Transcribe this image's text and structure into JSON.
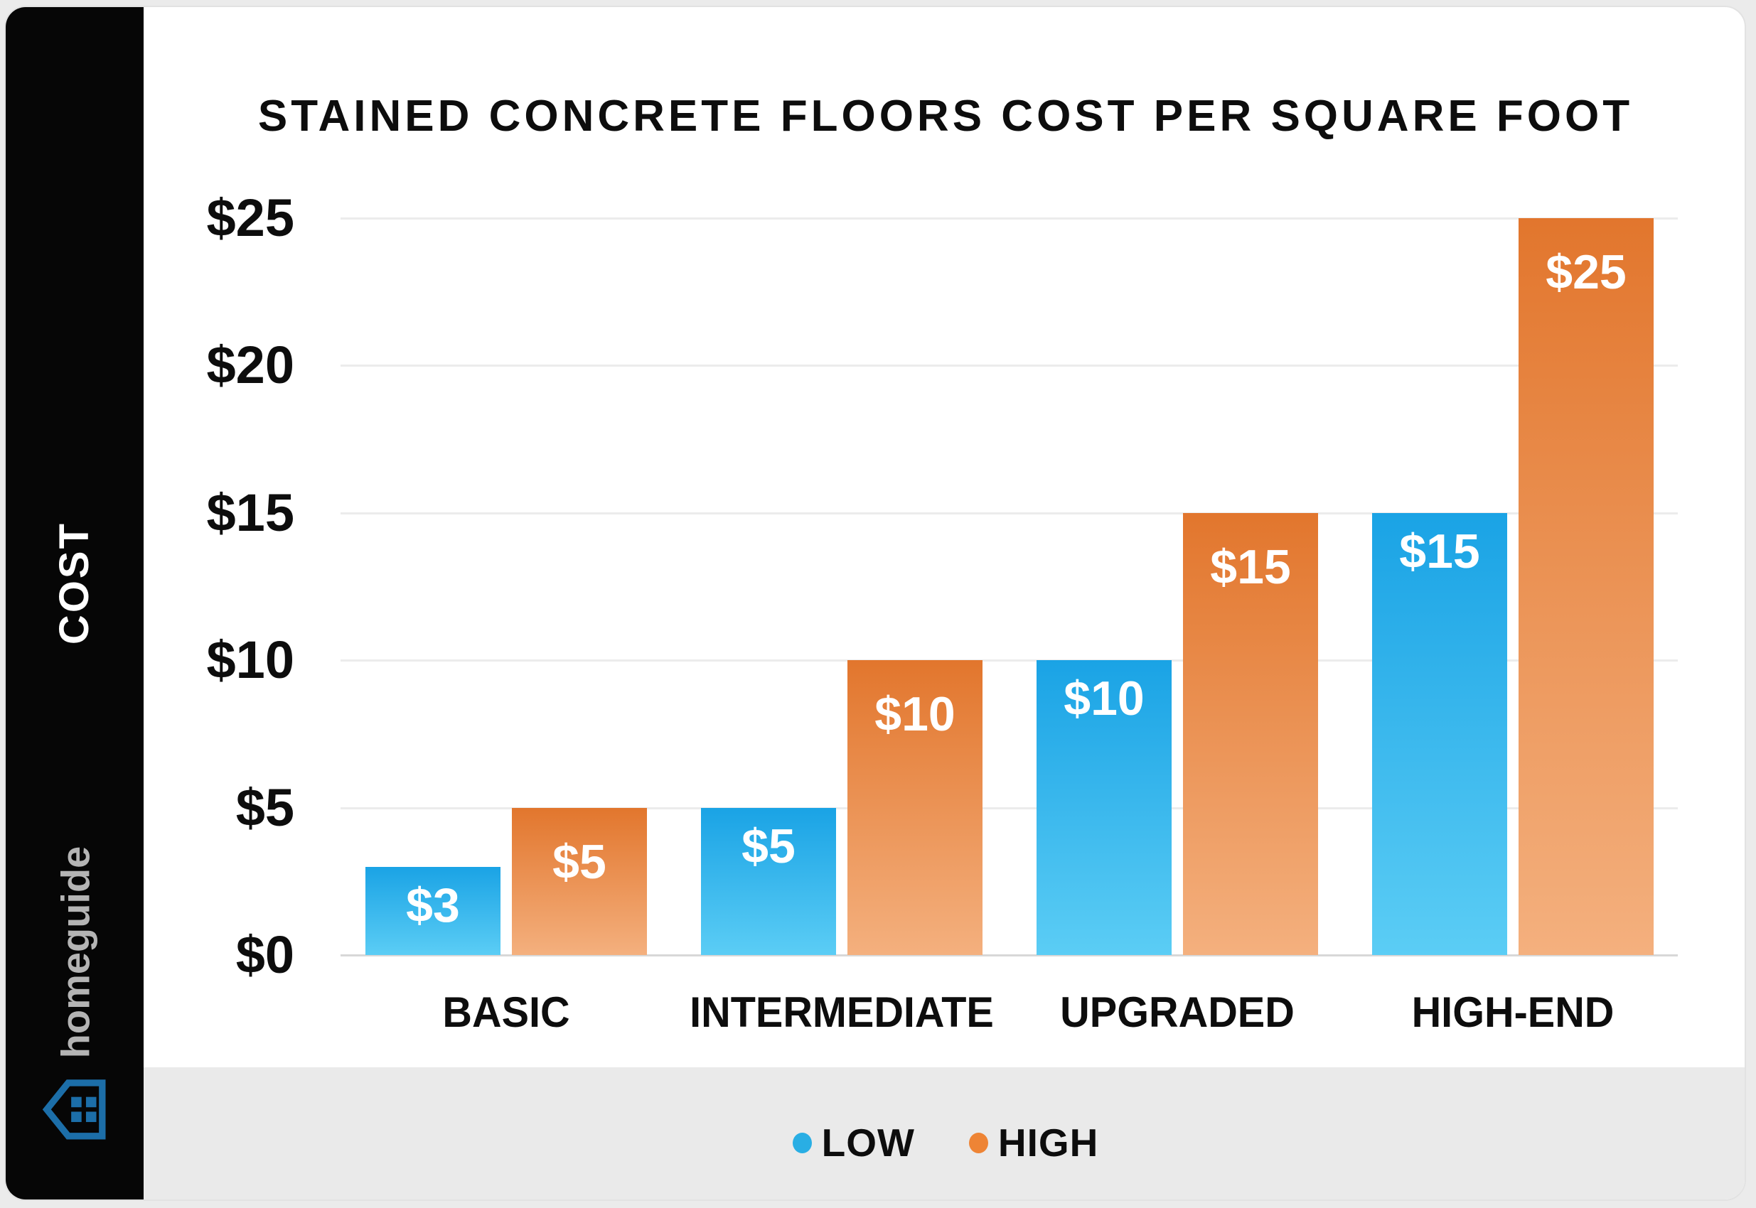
{
  "title": "STAINED CONCRETE FLOORS COST PER SQUARE FOOT",
  "sidebar": {
    "axis_label": "COST",
    "brand": "homeguide",
    "brand_text_color": "#b4b4b4",
    "house_icon_color": "#1c6ea8"
  },
  "legend": {
    "items": [
      {
        "label": "LOW",
        "color": "#29aee4"
      },
      {
        "label": "HIGH",
        "color": "#ee8435"
      }
    ]
  },
  "colors": {
    "rail_black": "#060606",
    "card_white": "#ffffff",
    "band_gray": "#eaeaea",
    "gridline": "#ececec",
    "baseline": "#d8d8d8",
    "text_black": "#0d0d0d"
  },
  "chart_data": {
    "type": "bar",
    "title": "STAINED CONCRETE FLOORS COST PER SQUARE FOOT",
    "categories": [
      "BASIC",
      "INTERMEDIATE",
      "UPGRADED",
      "HIGH-END"
    ],
    "series": [
      {
        "name": "LOW",
        "values": [
          3,
          5,
          10,
          15
        ],
        "labels": [
          "$3",
          "$5",
          "$10",
          "$15"
        ],
        "color_top": "#1aa3e5",
        "color_bottom": "#5bcdf5"
      },
      {
        "name": "HIGH",
        "values": [
          5,
          10,
          15,
          25
        ],
        "labels": [
          "$5",
          "$10",
          "$15",
          "$25"
        ],
        "color_top": "#e2762d",
        "color_bottom": "#f4b07e"
      }
    ],
    "xlabel": "",
    "ylabel": "COST",
    "ylim": [
      0,
      25
    ],
    "y_ticks": [
      0,
      5,
      10,
      15,
      20,
      25
    ],
    "y_tick_labels": [
      "$0",
      "$5",
      "$10",
      "$15",
      "$20",
      "$25"
    ],
    "grid": "horizontal",
    "legend_position": "bottom"
  }
}
